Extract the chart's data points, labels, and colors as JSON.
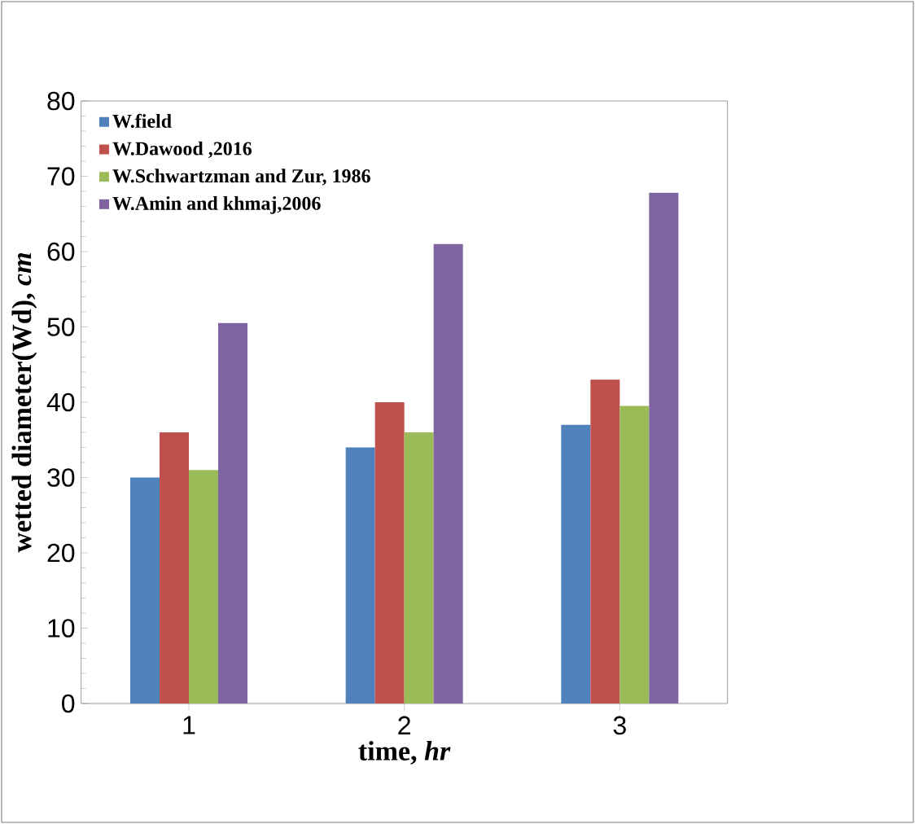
{
  "chart_data": {
    "type": "bar",
    "xlabel": "time, *hr*",
    "ylabel": "wetted diameter(Wd), *cm*",
    "categories": [
      "1",
      "2",
      "3"
    ],
    "series": [
      {
        "name": "W.field",
        "color": "#4f81bd",
        "values": [
          30,
          34,
          37
        ]
      },
      {
        "name": "W.Dawood ,2016",
        "color": "#c0504d",
        "values": [
          36,
          40,
          43
        ]
      },
      {
        "name": "W.Schwartzman and Zur, 1986",
        "color": "#9bbb59",
        "values": [
          31,
          36,
          39.5
        ]
      },
      {
        "name": "W.Amin and khmaj,2006",
        "color": "#8064a2",
        "values": [
          50.5,
          61,
          67.8
        ]
      }
    ],
    "ylim": [
      0,
      80
    ],
    "yticks": [
      0,
      10,
      20,
      30,
      40,
      50,
      60,
      70,
      80
    ],
    "legend": "top left",
    "grid": false
  }
}
